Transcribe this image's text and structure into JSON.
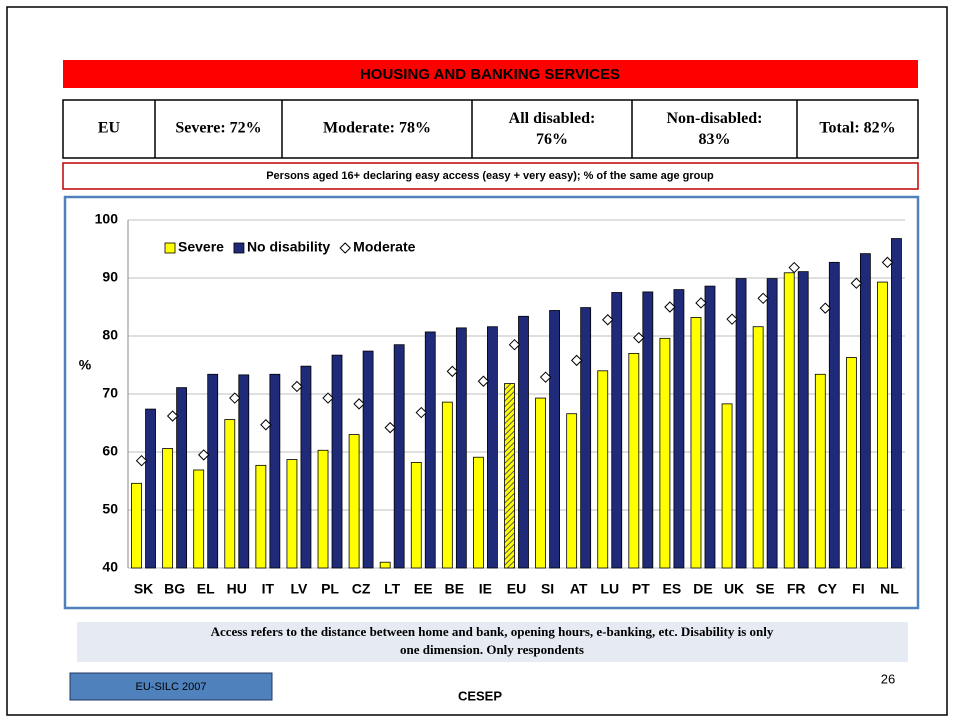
{
  "slide": {
    "title": "HOUSING AND BANKING SERVICES",
    "table": [
      "EU",
      "Severe: 72%",
      "Moderate: 78%",
      "All disabled: 76%",
      "Non-disabled: 83%",
      "Total: 82%"
    ],
    "subtitle": "Persons aged 16+  declaring easy access (easy + very easy); % of the same age group",
    "footnote": [
      "Access refers to the distance between home and bank, opening hours, e-banking, etc. Disability is only",
      "one dimension. Only respondents"
    ],
    "source": "EU-SILC 2007",
    "organization": "CESEP",
    "page_number": "26"
  },
  "chart_data": {
    "type": "bar",
    "ylabel": "%",
    "categories": [
      "SK",
      "BG",
      "EL",
      "HU",
      "IT",
      "LV",
      "PL",
      "CZ",
      "LT",
      "EE",
      "BE",
      "IE",
      "EU",
      "SI",
      "AT",
      "LU",
      "PT",
      "ES",
      "DE",
      "UK",
      "SE",
      "FR",
      "CY",
      "FI",
      "NL"
    ],
    "series": [
      {
        "name": "Severe",
        "color": "#ffff00",
        "marker": "bar",
        "values": [
          54.6,
          60.6,
          56.9,
          65.6,
          57.7,
          58.7,
          60.3,
          63.0,
          41.0,
          58.2,
          68.6,
          59.1,
          71.8,
          69.3,
          66.6,
          74.0,
          77.0,
          79.6,
          83.2,
          68.3,
          81.6,
          90.9,
          73.4,
          76.3,
          89.3
        ]
      },
      {
        "name": "No disability",
        "color": "#1f2a78",
        "marker": "bar",
        "values": [
          67.4,
          71.1,
          73.4,
          73.3,
          73.4,
          74.8,
          76.7,
          77.4,
          78.5,
          80.7,
          81.4,
          81.6,
          83.4,
          84.4,
          84.9,
          87.5,
          87.6,
          88.0,
          88.6,
          89.9,
          89.9,
          91.1,
          92.7,
          94.2,
          96.8
        ]
      },
      {
        "name": "Moderate",
        "color": "#ffffff",
        "marker": "diamond",
        "values": [
          58.5,
          66.2,
          59.5,
          69.3,
          64.7,
          71.3,
          69.3,
          68.3,
          64.2,
          66.8,
          73.9,
          72.2,
          78.5,
          72.9,
          75.8,
          82.8,
          79.7,
          85.0,
          85.7,
          82.9,
          86.5,
          91.8,
          84.8,
          89.1,
          92.7
        ]
      }
    ],
    "hatched_category": "EU",
    "ylim": [
      40,
      100
    ],
    "yticks": [
      40,
      50,
      60,
      70,
      80,
      90,
      100
    ],
    "grid": true,
    "legend": "top-left"
  }
}
